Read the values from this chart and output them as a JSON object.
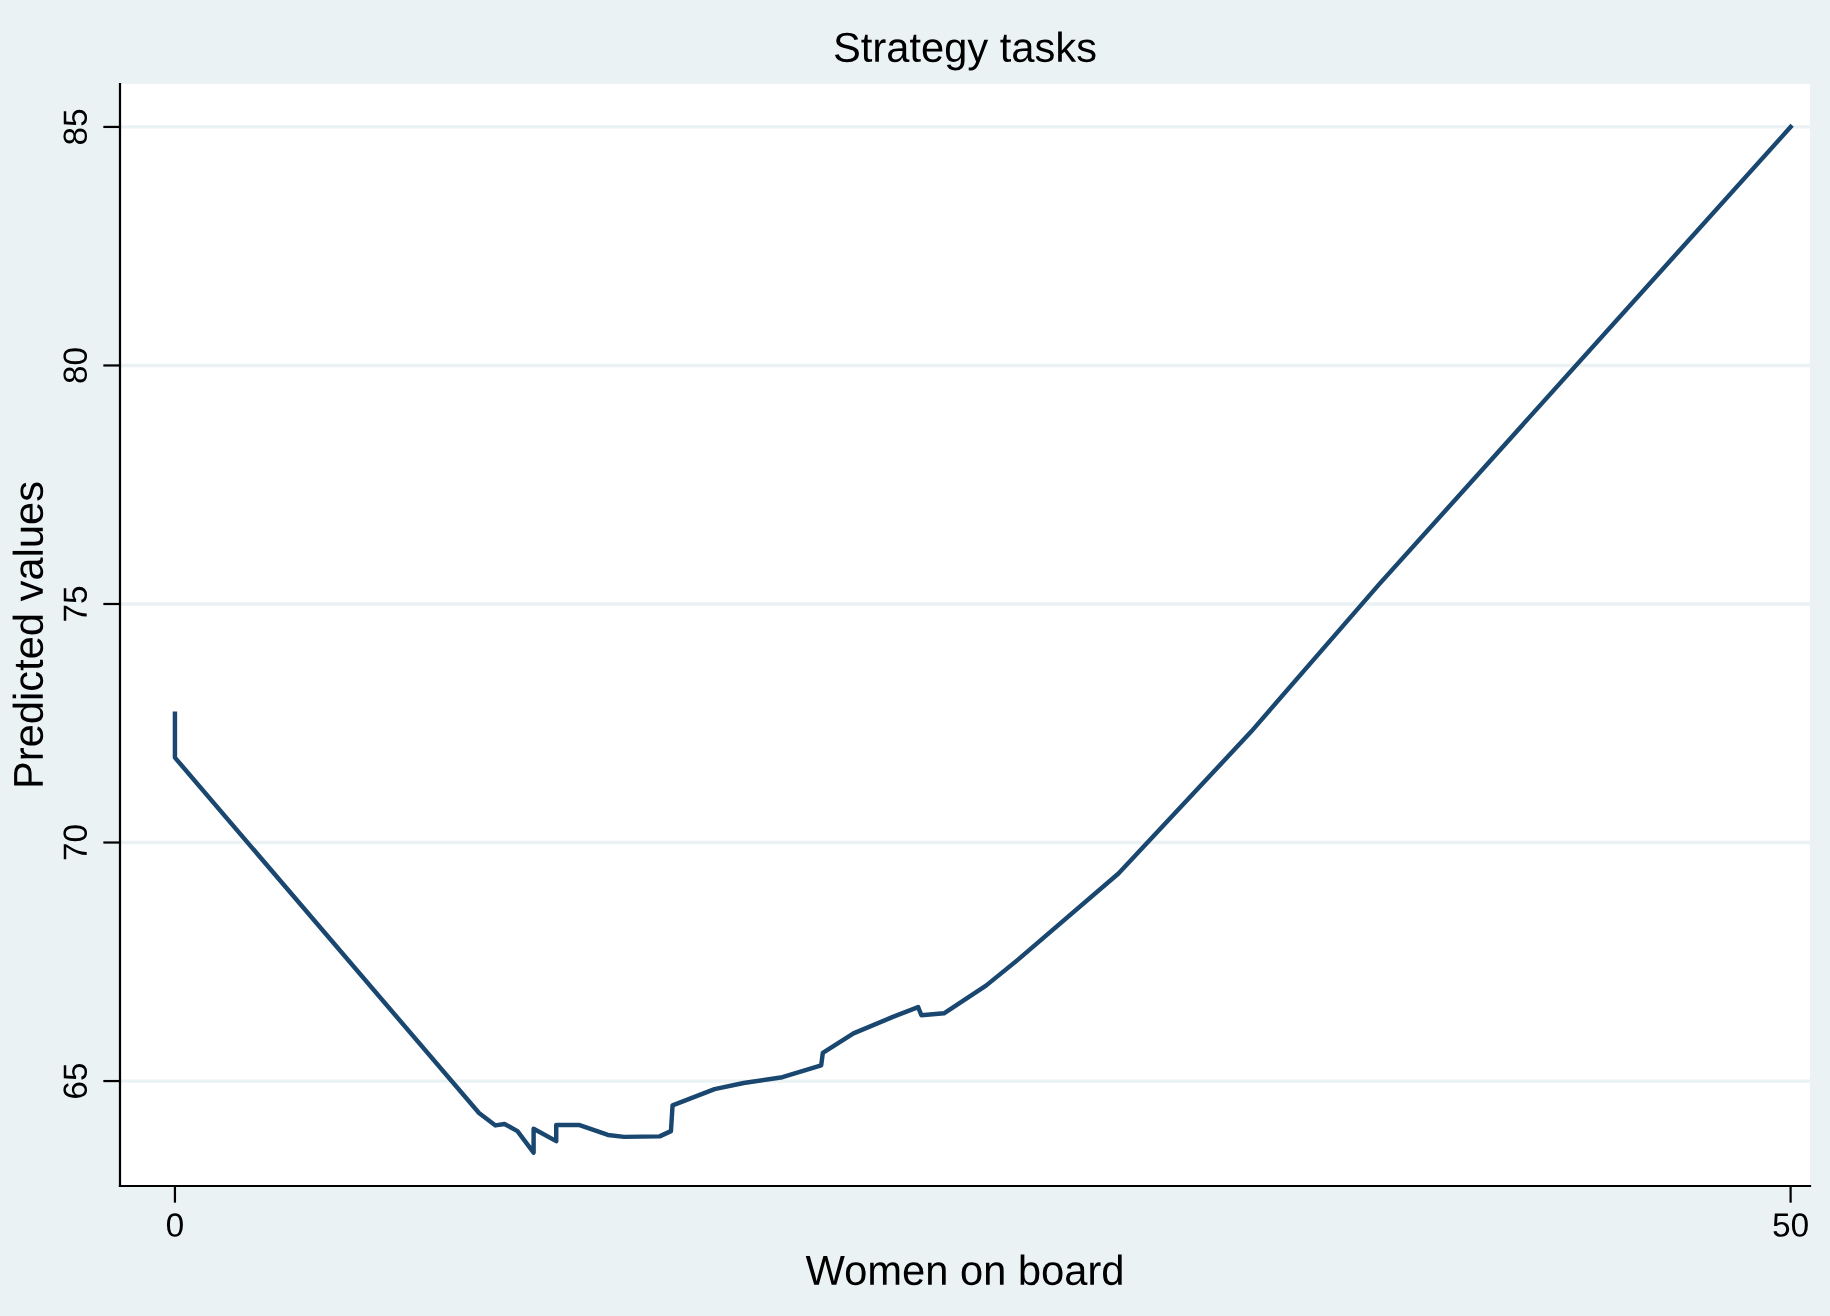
{
  "chart_data": {
    "type": "line",
    "title": "Strategy tasks",
    "xlabel": "Women on board",
    "ylabel": "Predicted values",
    "x": [
      0,
      0,
      9.41,
      9.92,
      10.2,
      10.6,
      11.1,
      11.1,
      11.8,
      11.8,
      12.5,
      13.4,
      13.9,
      15.0,
      15.35,
      15.4,
      16.7,
      17.6,
      18.8,
      20.0,
      20.05,
      21.0,
      22.2,
      23.0,
      23.1,
      23.8,
      25.1,
      26.1,
      29.2,
      33.3,
      37.25,
      50
    ],
    "series": [
      {
        "color": "#1a476f",
        "values": [
          72.7,
          71.78,
          64.33,
          64.07,
          64.1,
          63.95,
          63.5,
          64.0,
          63.74,
          64.08,
          64.08,
          63.87,
          63.83,
          63.84,
          63.95,
          64.49,
          64.83,
          64.96,
          65.08,
          65.33,
          65.59,
          66.0,
          66.34,
          66.55,
          66.38,
          66.42,
          67.0,
          67.55,
          69.35,
          72.32,
          75.4,
          85.0
        ]
      }
    ],
    "xlim": [
      -1.7,
      50.6
    ],
    "ylim": [
      62.8,
      85.9
    ],
    "xticks": [
      0,
      50
    ],
    "yticks": [
      65,
      70,
      75,
      80,
      85
    ],
    "grid": "y",
    "legend": false,
    "marker": "none",
    "line_style": "solid"
  }
}
